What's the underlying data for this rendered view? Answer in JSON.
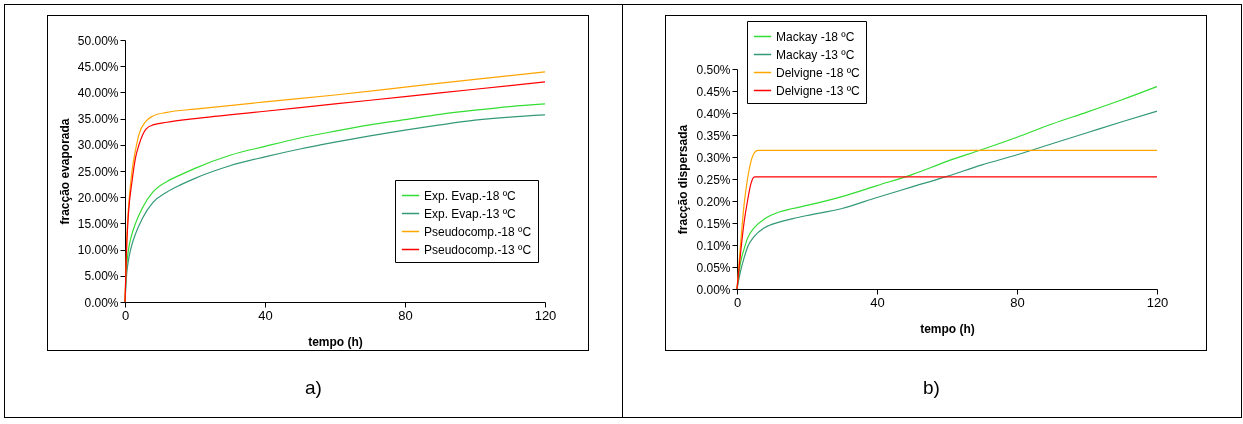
{
  "chart_data": [
    {
      "type": "line",
      "xlabel": "tempo (h)",
      "ylabel": "fracção evaporada",
      "xlim": [
        0,
        120
      ],
      "xticks": [
        0,
        40,
        80,
        120
      ],
      "ylim": [
        0,
        50
      ],
      "yticks": [
        {
          "value": 0,
          "label": "0.00%"
        },
        {
          "value": 5,
          "label": "5.00%"
        },
        {
          "value": 10,
          "label": "10.00%"
        },
        {
          "value": 15,
          "label": "15.00%"
        },
        {
          "value": 20,
          "label": "20.00%"
        },
        {
          "value": 25,
          "label": "25.00%"
        },
        {
          "value": 30,
          "label": "30.00%"
        },
        {
          "value": 35,
          "label": "35.00%"
        },
        {
          "value": 40,
          "label": "40.00%"
        },
        {
          "value": 45,
          "label": "45.00%"
        },
        {
          "value": 50,
          "label": "50.00%"
        }
      ],
      "grid": false,
      "legend": "bottom right",
      "annotations": [
        "a)"
      ],
      "series": [
        {
          "name": "Exp. Evap.-18 ºC",
          "color": "#33dd33",
          "x": [
            0,
            0.5,
            1,
            2,
            3,
            5,
            8,
            12,
            16,
            20,
            30,
            40,
            50,
            60,
            70,
            80,
            90,
            100,
            110,
            120
          ],
          "values": [
            0,
            7,
            10,
            13,
            15,
            18,
            21,
            23,
            24.3,
            25.5,
            28,
            29.7,
            31.3,
            32.6,
            33.8,
            34.8,
            35.8,
            36.6,
            37.3,
            37.8
          ]
        },
        {
          "name": "Exp. Evap.-13 ºC",
          "color": "#339977",
          "x": [
            0,
            0.5,
            1,
            2,
            3,
            5,
            8,
            12,
            16,
            20,
            30,
            40,
            50,
            60,
            70,
            80,
            90,
            100,
            110,
            120
          ],
          "values": [
            0,
            5.5,
            8,
            11,
            13,
            16,
            19,
            21,
            22.4,
            23.6,
            26,
            27.7,
            29.2,
            30.5,
            31.7,
            32.8,
            33.8,
            34.7,
            35.3,
            35.7
          ]
        },
        {
          "name": "Pseudocomp.-18 ºC",
          "color": "#ffa500",
          "x": [
            0,
            0.5,
            1,
            2,
            3,
            4,
            6,
            8,
            12,
            20,
            40,
            60,
            80,
            100,
            120
          ],
          "values": [
            0,
            12,
            18,
            25,
            29,
            32,
            34.5,
            35.5,
            36.2,
            36.8,
            38.2,
            39.5,
            41,
            42.5,
            43.9
          ]
        },
        {
          "name": "Pseudocomp.-13 ºC",
          "color": "#ff0000",
          "x": [
            0,
            0.5,
            1,
            2,
            3,
            4,
            6,
            8,
            12,
            20,
            40,
            60,
            80,
            100,
            120
          ],
          "values": [
            0,
            11,
            17,
            23,
            27.5,
            30,
            33,
            33.8,
            34.3,
            35,
            36.4,
            37.8,
            39.2,
            40.6,
            42
          ]
        }
      ]
    },
    {
      "type": "line",
      "xlabel": "tempo (h)",
      "ylabel": "fracção dispersada",
      "xlim": [
        0,
        120
      ],
      "xticks": [
        0,
        40,
        80,
        120
      ],
      "ylim": [
        0,
        0.5
      ],
      "yticks": [
        {
          "value": 0,
          "label": "0.00%"
        },
        {
          "value": 0.05,
          "label": "0.05%"
        },
        {
          "value": 0.1,
          "label": "0.10%"
        },
        {
          "value": 0.15,
          "label": "0.15%"
        },
        {
          "value": 0.2,
          "label": "0.20%"
        },
        {
          "value": 0.25,
          "label": "0.25%"
        },
        {
          "value": 0.3,
          "label": "0.30%"
        },
        {
          "value": 0.35,
          "label": "0.35%"
        },
        {
          "value": 0.4,
          "label": "0.40%"
        },
        {
          "value": 0.45,
          "label": "0.45%"
        },
        {
          "value": 0.5,
          "label": "0.50%"
        }
      ],
      "grid": false,
      "legend": "top left",
      "annotations": [
        "b)"
      ],
      "series": [
        {
          "name": "Mackay -18 ºC",
          "color": "#33dd33",
          "x": [
            0,
            1,
            2,
            3,
            5,
            8,
            12,
            16,
            20,
            30,
            40,
            50,
            60,
            70,
            80,
            90,
            100,
            110,
            120
          ],
          "values": [
            0,
            0.06,
            0.09,
            0.115,
            0.14,
            0.16,
            0.175,
            0.183,
            0.19,
            0.21,
            0.235,
            0.26,
            0.29,
            0.317,
            0.345,
            0.375,
            0.402,
            0.43,
            0.46
          ]
        },
        {
          "name": "Mackay -13 ºC",
          "color": "#339977",
          "x": [
            0,
            1,
            2,
            3,
            5,
            8,
            12,
            16,
            20,
            30,
            40,
            50,
            60,
            70,
            80,
            90,
            100,
            110,
            120
          ],
          "values": [
            0,
            0.04,
            0.07,
            0.095,
            0.12,
            0.14,
            0.152,
            0.16,
            0.167,
            0.183,
            0.208,
            0.232,
            0.256,
            0.282,
            0.305,
            0.33,
            0.355,
            0.38,
            0.404
          ]
        },
        {
          "name": "Delvigne -18 ºC",
          "color": "#ffa500",
          "x": [
            0,
            1,
            2,
            3,
            4,
            5,
            6,
            120
          ],
          "values": [
            0,
            0.1,
            0.19,
            0.25,
            0.29,
            0.31,
            0.315,
            0.315
          ]
        },
        {
          "name": "Delvigne -13 ºC",
          "color": "#ff0000",
          "x": [
            0,
            1,
            2,
            3,
            4,
            5,
            120
          ],
          "values": [
            0,
            0.08,
            0.15,
            0.2,
            0.24,
            0.255,
            0.255
          ]
        }
      ]
    }
  ]
}
